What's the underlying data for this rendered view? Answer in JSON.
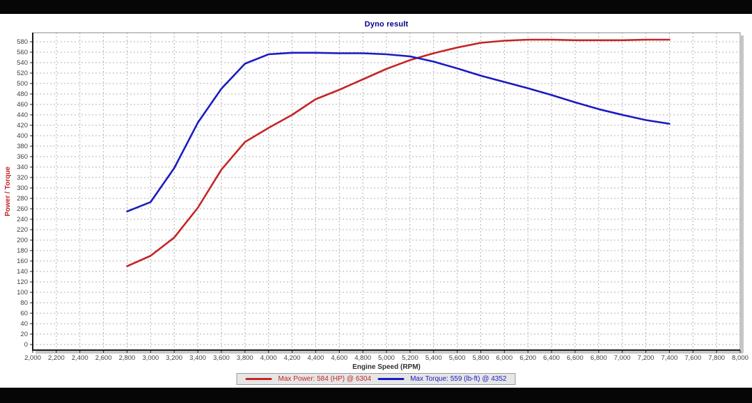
{
  "chart": {
    "title": "Dyno result",
    "xlabel": "Engine Speed (RPM)",
    "ylabel": "Power / Torque",
    "legend": {
      "power": "Max Power: 584 (HP) @ 6304",
      "torque": "Max Torque: 559 (lb-ft) @ 4352"
    },
    "colors": {
      "background": "#ffffff",
      "letterbox": "#060606",
      "title": "#00008b",
      "power": "#c42525",
      "torque": "#1a1ac2",
      "grid": "#b0b0b0",
      "axis": "#1a1a1a",
      "frame": "#888888",
      "tick_text": "#404040",
      "xlabel_text": "#303030",
      "legend_bg": "#e6e6e6",
      "legend_border": "#9a9a9a",
      "shadow": "#c6c6c6"
    }
  },
  "chart_data": {
    "type": "line",
    "title": "Dyno result",
    "xlabel": "Engine Speed (RPM)",
    "ylabel": "Power / Torque",
    "x": [
      2800,
      3000,
      3200,
      3400,
      3600,
      3800,
      4000,
      4200,
      4400,
      4600,
      4800,
      5000,
      5200,
      5400,
      5600,
      5800,
      6000,
      6200,
      6400,
      6600,
      6800,
      7000,
      7200,
      7400
    ],
    "series": [
      {
        "name": "Max Power: 584 (HP) @ 6304",
        "color_key": "power",
        "values": [
          150,
          170,
          205,
          262,
          335,
          388,
          415,
          440,
          470,
          488,
          508,
          528,
          545,
          558,
          569,
          578,
          582,
          584,
          584,
          583,
          583,
          583,
          584,
          584
        ]
      },
      {
        "name": "Max Torque: 559 (lb-ft) @ 4352",
        "color_key": "torque",
        "values": [
          255,
          273,
          338,
          425,
          490,
          538,
          556,
          559,
          559,
          558,
          558,
          556,
          552,
          542,
          529,
          515,
          503,
          491,
          478,
          464,
          451,
          440,
          430,
          423
        ]
      }
    ],
    "xlim": [
      2000,
      8000
    ],
    "ylim": [
      0,
      580
    ],
    "x_tick_step": 200,
    "y_tick_step": 20,
    "grid": true,
    "legend_position": "bottom",
    "max_power": {
      "value": 584,
      "unit": "HP",
      "rpm": 6304
    },
    "max_torque": {
      "value": 559,
      "unit": "lb-ft",
      "rpm": 4352
    }
  }
}
